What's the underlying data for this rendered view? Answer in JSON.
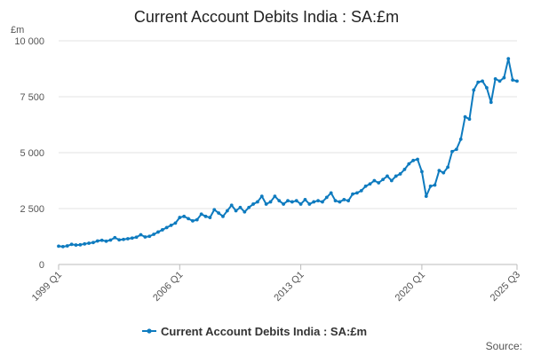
{
  "chart_data": {
    "type": "line",
    "title": "Current Account Debits India : SA:£m",
    "ylabel": "£m",
    "xlabel": "",
    "ylim": [
      0,
      10000
    ],
    "yticks": [
      0,
      2500,
      5000,
      7500,
      10000
    ],
    "ytick_labels": [
      "0",
      "2 500",
      "5 000",
      "7 500",
      "10 000"
    ],
    "xlim": [
      "1999 Q1",
      "2025 Q3"
    ],
    "xticks": [
      "1999 Q1",
      "2006 Q1",
      "2013 Q1",
      "2020 Q1",
      "2025 Q3"
    ],
    "grid": true,
    "legend_position": "bottom",
    "series": [
      {
        "name": "Current Account Debits India : SA:£m",
        "color": "#0e7bbf",
        "x": [
          "1999 Q1",
          "1999 Q2",
          "1999 Q3",
          "1999 Q4",
          "2000 Q1",
          "2000 Q2",
          "2000 Q3",
          "2000 Q4",
          "2001 Q1",
          "2001 Q2",
          "2001 Q3",
          "2001 Q4",
          "2002 Q1",
          "2002 Q2",
          "2002 Q3",
          "2002 Q4",
          "2003 Q1",
          "2003 Q2",
          "2003 Q3",
          "2003 Q4",
          "2004 Q1",
          "2004 Q2",
          "2004 Q3",
          "2004 Q4",
          "2005 Q1",
          "2005 Q2",
          "2005 Q3",
          "2005 Q4",
          "2006 Q1",
          "2006 Q2",
          "2006 Q3",
          "2006 Q4",
          "2007 Q1",
          "2007 Q2",
          "2007 Q3",
          "2007 Q4",
          "2008 Q1",
          "2008 Q2",
          "2008 Q3",
          "2008 Q4",
          "2009 Q1",
          "2009 Q2",
          "2009 Q3",
          "2009 Q4",
          "2010 Q1",
          "2010 Q2",
          "2010 Q3",
          "2010 Q4",
          "2011 Q1",
          "2011 Q2",
          "2011 Q3",
          "2011 Q4",
          "2012 Q1",
          "2012 Q2",
          "2012 Q3",
          "2012 Q4",
          "2013 Q1",
          "2013 Q2",
          "2013 Q3",
          "2013 Q4",
          "2014 Q1",
          "2014 Q2",
          "2014 Q3",
          "2014 Q4",
          "2015 Q1",
          "2015 Q2",
          "2015 Q3",
          "2015 Q4",
          "2016 Q1",
          "2016 Q2",
          "2016 Q3",
          "2016 Q4",
          "2017 Q1",
          "2017 Q2",
          "2017 Q3",
          "2017 Q4",
          "2018 Q1",
          "2018 Q2",
          "2018 Q3",
          "2018 Q4",
          "2019 Q1",
          "2019 Q2",
          "2019 Q3",
          "2019 Q4",
          "2020 Q1",
          "2020 Q2",
          "2020 Q3",
          "2020 Q4",
          "2021 Q1",
          "2021 Q2",
          "2021 Q3",
          "2021 Q4",
          "2022 Q1",
          "2022 Q2",
          "2022 Q3",
          "2022 Q4",
          "2023 Q1",
          "2023 Q2",
          "2023 Q3",
          "2023 Q4",
          "2024 Q1",
          "2024 Q2",
          "2024 Q3",
          "2024 Q4",
          "2025 Q1",
          "2025 Q2",
          "2025 Q3"
        ],
        "values": [
          820,
          800,
          830,
          900,
          870,
          880,
          920,
          950,
          980,
          1050,
          1080,
          1040,
          1090,
          1200,
          1100,
          1120,
          1150,
          1180,
          1220,
          1330,
          1230,
          1260,
          1350,
          1450,
          1550,
          1650,
          1750,
          1850,
          2100,
          2150,
          2050,
          1950,
          2000,
          2250,
          2150,
          2100,
          2450,
          2300,
          2150,
          2400,
          2650,
          2400,
          2550,
          2350,
          2550,
          2700,
          2800,
          3050,
          2700,
          2800,
          3050,
          2850,
          2700,
          2850,
          2800,
          2850,
          2700,
          2900,
          2700,
          2800,
          2850,
          2800,
          3000,
          3200,
          2850,
          2800,
          2900,
          2850,
          3150,
          3200,
          3300,
          3500,
          3600,
          3750,
          3650,
          3800,
          3950,
          3750,
          3950,
          4050,
          4250,
          4500,
          4650,
          4700,
          4150,
          3050,
          3500,
          3550,
          4200,
          4100,
          4350,
          5050,
          5150,
          5600,
          6600,
          6500,
          7800,
          8150,
          8200,
          7900,
          7250,
          8300,
          8200,
          8350,
          9200,
          8250,
          8200
        ]
      }
    ]
  },
  "source_label": "Source:"
}
